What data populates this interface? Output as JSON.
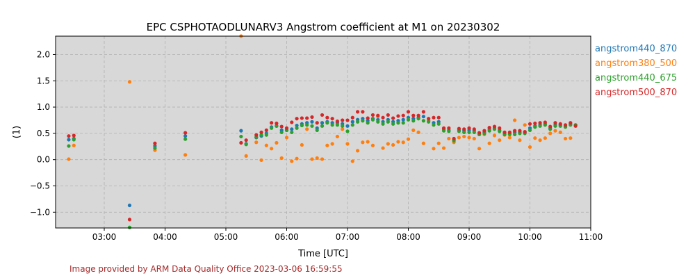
{
  "chart_data": {
    "type": "scatter",
    "title": "EPC CSPHOTAODLUNARV3 Angstrom coefficient at M1 on 20230302",
    "xlabel": "Time [UTC]",
    "ylabel": "(1)",
    "xlim": [
      "02:12",
      "11:00"
    ],
    "ylim": [
      -1.3,
      2.35
    ],
    "x_ticks": [
      "03:00",
      "04:00",
      "05:00",
      "06:00",
      "07:00",
      "08:00",
      "09:00",
      "10:00",
      "11:00"
    ],
    "y_ticks": [
      -1.0,
      -0.5,
      0.0,
      0.5,
      1.0,
      1.5,
      2.0
    ],
    "grid": true,
    "background": "#d8d8d8",
    "legend_position": "right-outside",
    "series": [
      {
        "name": "angstrom440_870",
        "color": "#1f77b4",
        "points": [
          [
            "02:25",
            0.38
          ],
          [
            "02:30",
            0.4
          ],
          [
            "03:25",
            -0.87
          ],
          [
            "03:50",
            0.26
          ],
          [
            "04:20",
            0.45
          ],
          [
            "05:15",
            0.55
          ],
          [
            "05:20",
            0.3
          ],
          [
            "05:30",
            0.42
          ],
          [
            "05:35",
            0.45
          ],
          [
            "05:40",
            0.5
          ],
          [
            "05:45",
            0.62
          ],
          [
            "05:50",
            0.64
          ],
          [
            "05:55",
            0.56
          ],
          [
            "06:00",
            0.56
          ],
          [
            "06:05",
            0.58
          ],
          [
            "06:10",
            0.65
          ],
          [
            "06:15",
            0.68
          ],
          [
            "06:20",
            0.7
          ],
          [
            "06:25",
            0.72
          ],
          [
            "06:30",
            0.6
          ],
          [
            "06:35",
            0.7
          ],
          [
            "06:40",
            0.72
          ],
          [
            "06:45",
            0.7
          ],
          [
            "06:50",
            0.7
          ],
          [
            "06:55",
            0.68
          ],
          [
            "07:00",
            0.64
          ],
          [
            "07:05",
            0.72
          ],
          [
            "07:10",
            0.76
          ],
          [
            "07:15",
            0.78
          ],
          [
            "07:20",
            0.74
          ],
          [
            "07:25",
            0.78
          ],
          [
            "07:30",
            0.76
          ],
          [
            "07:35",
            0.72
          ],
          [
            "07:40",
            0.76
          ],
          [
            "07:45",
            0.72
          ],
          [
            "07:50",
            0.74
          ],
          [
            "07:55",
            0.76
          ],
          [
            "08:00",
            0.8
          ],
          [
            "08:05",
            0.78
          ],
          [
            "08:10",
            0.8
          ],
          [
            "08:15",
            0.82
          ],
          [
            "08:20",
            0.74
          ],
          [
            "08:25",
            0.7
          ],
          [
            "08:30",
            0.72
          ],
          [
            "08:35",
            0.58
          ],
          [
            "08:40",
            0.56
          ],
          [
            "08:45",
            0.38
          ],
          [
            "08:50",
            0.56
          ],
          [
            "08:55",
            0.55
          ],
          [
            "09:00",
            0.56
          ],
          [
            "09:05",
            0.55
          ],
          [
            "09:10",
            0.48
          ],
          [
            "09:15",
            0.52
          ],
          [
            "09:20",
            0.58
          ],
          [
            "09:25",
            0.6
          ],
          [
            "09:30",
            0.56
          ],
          [
            "09:35",
            0.5
          ],
          [
            "09:40",
            0.5
          ],
          [
            "09:45",
            0.52
          ],
          [
            "09:50",
            0.52
          ],
          [
            "09:55",
            0.52
          ],
          [
            "10:00",
            0.6
          ],
          [
            "10:05",
            0.64
          ],
          [
            "10:10",
            0.66
          ],
          [
            "10:15",
            0.68
          ],
          [
            "10:20",
            0.6
          ],
          [
            "10:25",
            0.66
          ],
          [
            "10:30",
            0.66
          ],
          [
            "10:35",
            0.64
          ],
          [
            "10:40",
            0.68
          ],
          [
            "10:45",
            0.66
          ]
        ]
      },
      {
        "name": "angstrom380_500",
        "color": "#ff7f0e",
        "points": [
          [
            "02:25",
            0.01
          ],
          [
            "02:30",
            0.27
          ],
          [
            "03:25",
            1.48
          ],
          [
            "03:50",
            0.18
          ],
          [
            "04:20",
            0.09
          ],
          [
            "05:15",
            2.35
          ],
          [
            "05:20",
            0.07
          ],
          [
            "05:30",
            0.33
          ],
          [
            "05:35",
            -0.01
          ],
          [
            "05:40",
            0.27
          ],
          [
            "05:45",
            0.21
          ],
          [
            "05:50",
            0.32
          ],
          [
            "05:55",
            0.03
          ],
          [
            "06:00",
            0.42
          ],
          [
            "06:05",
            -0.03
          ],
          [
            "06:10",
            0.02
          ],
          [
            "06:15",
            0.28
          ],
          [
            "06:20",
            0.58
          ],
          [
            "06:25",
            0.01
          ],
          [
            "06:30",
            0.03
          ],
          [
            "06:35",
            0.01
          ],
          [
            "06:40",
            0.27
          ],
          [
            "06:45",
            0.3
          ],
          [
            "06:50",
            0.44
          ],
          [
            "06:55",
            0.58
          ],
          [
            "07:00",
            0.3
          ],
          [
            "07:05",
            -0.03
          ],
          [
            "07:10",
            0.17
          ],
          [
            "07:15",
            0.33
          ],
          [
            "07:20",
            0.34
          ],
          [
            "07:25",
            0.27
          ],
          [
            "07:30",
            0.82
          ],
          [
            "07:35",
            0.22
          ],
          [
            "07:40",
            0.3
          ],
          [
            "07:45",
            0.28
          ],
          [
            "07:50",
            0.34
          ],
          [
            "07:55",
            0.33
          ],
          [
            "08:00",
            0.39
          ],
          [
            "08:05",
            0.56
          ],
          [
            "08:10",
            0.52
          ],
          [
            "08:15",
            0.31
          ],
          [
            "08:20",
            0.75
          ],
          [
            "08:25",
            0.21
          ],
          [
            "08:30",
            0.31
          ],
          [
            "08:35",
            0.22
          ],
          [
            "08:40",
            0.4
          ],
          [
            "08:45",
            0.33
          ],
          [
            "08:50",
            0.42
          ],
          [
            "08:55",
            0.44
          ],
          [
            "09:00",
            0.42
          ],
          [
            "09:05",
            0.4
          ],
          [
            "09:10",
            0.21
          ],
          [
            "09:15",
            0.48
          ],
          [
            "09:20",
            0.31
          ],
          [
            "09:25",
            0.46
          ],
          [
            "09:30",
            0.37
          ],
          [
            "09:35",
            0.47
          ],
          [
            "09:40",
            0.42
          ],
          [
            "09:45",
            0.75
          ],
          [
            "09:50",
            0.37
          ],
          [
            "09:55",
            0.66
          ],
          [
            "10:00",
            0.24
          ],
          [
            "10:05",
            0.41
          ],
          [
            "10:10",
            0.37
          ],
          [
            "10:15",
            0.41
          ],
          [
            "10:20",
            0.5
          ],
          [
            "10:25",
            0.55
          ],
          [
            "10:30",
            0.52
          ],
          [
            "10:35",
            0.4
          ],
          [
            "10:40",
            0.41
          ],
          [
            "10:45",
            0.66
          ]
        ]
      },
      {
        "name": "angstrom440_675",
        "color": "#2ca02c",
        "points": [
          [
            "02:25",
            0.26
          ],
          [
            "02:30",
            0.38
          ],
          [
            "03:25",
            -1.29
          ],
          [
            "03:50",
            0.22
          ],
          [
            "04:20",
            0.39
          ],
          [
            "05:15",
            0.44
          ],
          [
            "05:20",
            0.29
          ],
          [
            "05:30",
            0.43
          ],
          [
            "05:35",
            0.47
          ],
          [
            "05:40",
            0.47
          ],
          [
            "05:45",
            0.6
          ],
          [
            "05:50",
            0.64
          ],
          [
            "05:55",
            0.52
          ],
          [
            "06:00",
            0.56
          ],
          [
            "06:05",
            0.52
          ],
          [
            "06:10",
            0.6
          ],
          [
            "06:15",
            0.65
          ],
          [
            "06:20",
            0.66
          ],
          [
            "06:25",
            0.64
          ],
          [
            "06:30",
            0.56
          ],
          [
            "06:35",
            0.64
          ],
          [
            "06:40",
            0.7
          ],
          [
            "06:45",
            0.66
          ],
          [
            "06:50",
            0.66
          ],
          [
            "06:55",
            0.64
          ],
          [
            "07:00",
            0.54
          ],
          [
            "07:05",
            0.66
          ],
          [
            "07:10",
            0.72
          ],
          [
            "07:15",
            0.74
          ],
          [
            "07:20",
            0.7
          ],
          [
            "07:25",
            0.76
          ],
          [
            "07:30",
            0.72
          ],
          [
            "07:35",
            0.68
          ],
          [
            "07:40",
            0.72
          ],
          [
            "07:45",
            0.68
          ],
          [
            "07:50",
            0.7
          ],
          [
            "07:55",
            0.7
          ],
          [
            "08:00",
            0.76
          ],
          [
            "08:05",
            0.74
          ],
          [
            "08:10",
            0.78
          ],
          [
            "08:15",
            0.74
          ],
          [
            "08:20",
            0.72
          ],
          [
            "08:25",
            0.66
          ],
          [
            "08:30",
            0.68
          ],
          [
            "08:35",
            0.55
          ],
          [
            "08:40",
            0.54
          ],
          [
            "08:45",
            0.36
          ],
          [
            "08:50",
            0.54
          ],
          [
            "08:55",
            0.52
          ],
          [
            "09:00",
            0.52
          ],
          [
            "09:05",
            0.52
          ],
          [
            "09:10",
            0.48
          ],
          [
            "09:15",
            0.5
          ],
          [
            "09:20",
            0.55
          ],
          [
            "09:25",
            0.58
          ],
          [
            "09:30",
            0.54
          ],
          [
            "09:35",
            0.48
          ],
          [
            "09:40",
            0.48
          ],
          [
            "09:45",
            0.48
          ],
          [
            "09:50",
            0.5
          ],
          [
            "09:55",
            0.5
          ],
          [
            "10:00",
            0.56
          ],
          [
            "10:05",
            0.62
          ],
          [
            "10:10",
            0.64
          ],
          [
            "10:15",
            0.66
          ],
          [
            "10:20",
            0.58
          ],
          [
            "10:25",
            0.64
          ],
          [
            "10:30",
            0.64
          ],
          [
            "10:35",
            0.62
          ],
          [
            "10:40",
            0.66
          ],
          [
            "10:45",
            0.66
          ]
        ]
      },
      {
        "name": "angstrom500_870",
        "color": "#d62728",
        "points": [
          [
            "02:25",
            0.45
          ],
          [
            "02:30",
            0.46
          ],
          [
            "03:25",
            -1.14
          ],
          [
            "03:50",
            0.31
          ],
          [
            "04:20",
            0.51
          ],
          [
            "05:15",
            0.32
          ],
          [
            "05:20",
            0.37
          ],
          [
            "05:30",
            0.47
          ],
          [
            "05:35",
            0.52
          ],
          [
            "05:40",
            0.56
          ],
          [
            "05:45",
            0.7
          ],
          [
            "05:50",
            0.69
          ],
          [
            "05:55",
            0.63
          ],
          [
            "06:00",
            0.6
          ],
          [
            "06:05",
            0.71
          ],
          [
            "06:10",
            0.78
          ],
          [
            "06:15",
            0.79
          ],
          [
            "06:20",
            0.79
          ],
          [
            "06:25",
            0.81
          ],
          [
            "06:30",
            0.7
          ],
          [
            "06:35",
            0.85
          ],
          [
            "06:40",
            0.8
          ],
          [
            "06:45",
            0.78
          ],
          [
            "06:50",
            0.73
          ],
          [
            "06:55",
            0.75
          ],
          [
            "07:00",
            0.75
          ],
          [
            "07:05",
            0.8
          ],
          [
            "07:10",
            0.91
          ],
          [
            "07:15",
            0.91
          ],
          [
            "07:20",
            0.79
          ],
          [
            "07:25",
            0.85
          ],
          [
            "07:30",
            0.84
          ],
          [
            "07:35",
            0.8
          ],
          [
            "07:40",
            0.85
          ],
          [
            "07:45",
            0.79
          ],
          [
            "07:50",
            0.83
          ],
          [
            "07:55",
            0.84
          ],
          [
            "08:00",
            0.91
          ],
          [
            "08:05",
            0.84
          ],
          [
            "08:10",
            0.84
          ],
          [
            "08:15",
            0.91
          ],
          [
            "08:20",
            0.78
          ],
          [
            "08:25",
            0.8
          ],
          [
            "08:30",
            0.8
          ],
          [
            "08:35",
            0.6
          ],
          [
            "08:40",
            0.6
          ],
          [
            "08:45",
            0.4
          ],
          [
            "08:50",
            0.59
          ],
          [
            "08:55",
            0.58
          ],
          [
            "09:00",
            0.6
          ],
          [
            "09:05",
            0.58
          ],
          [
            "09:10",
            0.51
          ],
          [
            "09:15",
            0.55
          ],
          [
            "09:20",
            0.61
          ],
          [
            "09:25",
            0.63
          ],
          [
            "09:30",
            0.6
          ],
          [
            "09:35",
            0.52
          ],
          [
            "09:40",
            0.52
          ],
          [
            "09:45",
            0.55
          ],
          [
            "09:50",
            0.55
          ],
          [
            "09:55",
            0.53
          ],
          [
            "10:00",
            0.68
          ],
          [
            "10:05",
            0.69
          ],
          [
            "10:10",
            0.7
          ],
          [
            "10:15",
            0.71
          ],
          [
            "10:20",
            0.63
          ],
          [
            "10:25",
            0.7
          ],
          [
            "10:30",
            0.68
          ],
          [
            "10:35",
            0.66
          ],
          [
            "10:40",
            0.7
          ],
          [
            "10:45",
            0.64
          ]
        ]
      }
    ]
  },
  "footer": "Image provided by ARM Data Quality Office 2023-03-06 16:59:55"
}
